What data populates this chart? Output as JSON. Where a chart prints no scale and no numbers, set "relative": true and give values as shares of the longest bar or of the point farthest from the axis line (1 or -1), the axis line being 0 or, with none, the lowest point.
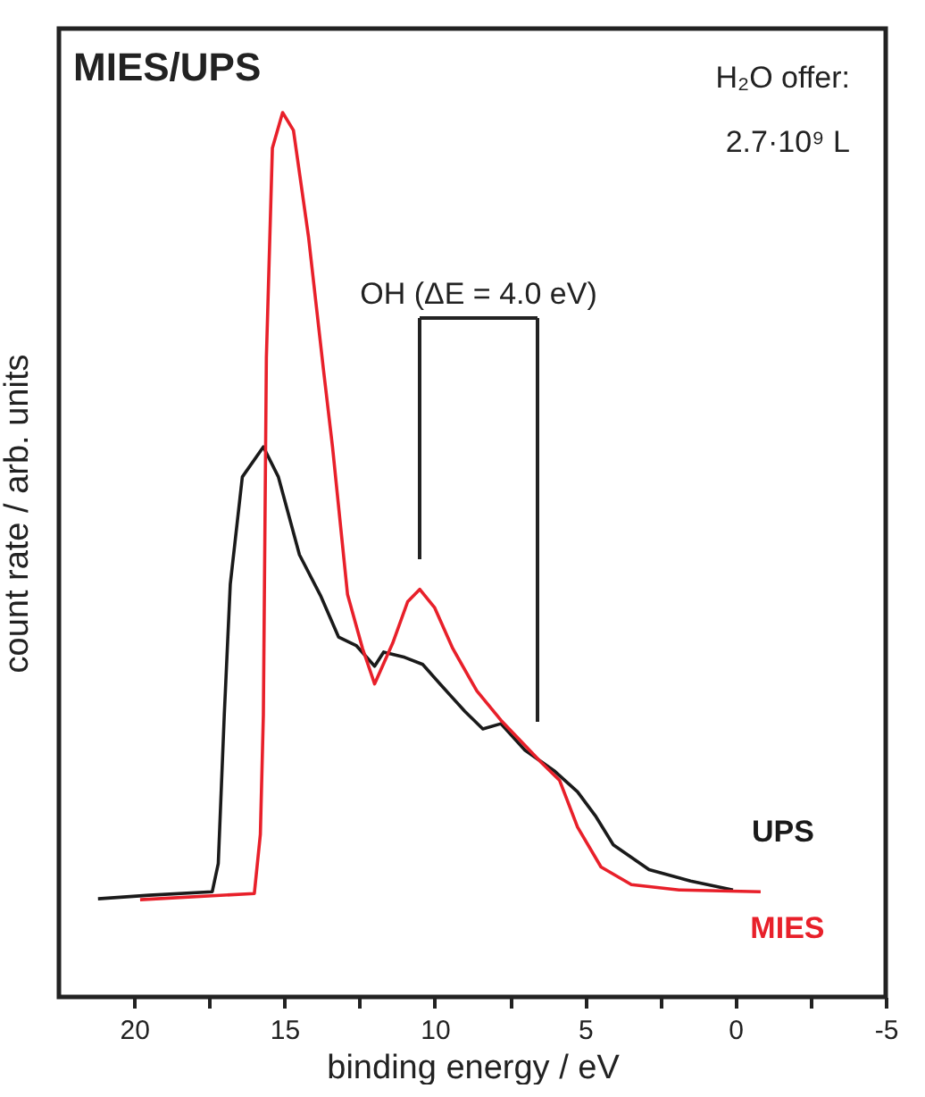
{
  "chart_data": {
    "type": "line",
    "title": "MIES/UPS",
    "xlabel": "binding energy / eV",
    "ylabel": "count rate / arb. units",
    "relative": true,
    "annotations": [
      "H₂O offer:",
      "2.7·10⁹ L",
      "OH (ΔE = 4.0 eV)"
    ],
    "xlim": [
      22.5,
      -5
    ],
    "xticks": [
      20,
      {
        "value": 17.5,
        "label": null
      },
      15,
      {
        "value": 12.5,
        "label": null
      },
      10,
      {
        "value": 7.5,
        "label": null
      },
      5,
      {
        "value": 2.5,
        "label": null
      },
      0,
      {
        "value": -2.5,
        "label": null
      },
      -5
    ],
    "grid": false,
    "legend": false,
    "line_style": "solid",
    "marker": "none",
    "series": [
      {
        "name": "UPS",
        "color": "#1a1a1a",
        "x": [
          21.2,
          19.5,
          17.4,
          17.2,
          17.0,
          16.8,
          16.4,
          15.7,
          15.2,
          14.5,
          13.8,
          13.2,
          12.6,
          12.0,
          11.7,
          11.0,
          10.4,
          9.8,
          9.0,
          8.4,
          7.8,
          7.0,
          6.0,
          5.25,
          4.66,
          4.06,
          2.87,
          1.49,
          0.08
        ],
        "values": [
          0.111,
          0.115,
          0.119,
          0.151,
          0.319,
          0.467,
          0.588,
          0.622,
          0.588,
          0.5,
          0.454,
          0.407,
          0.397,
          0.374,
          0.39,
          0.384,
          0.376,
          0.353,
          0.323,
          0.303,
          0.309,
          0.279,
          0.255,
          0.232,
          0.205,
          0.172,
          0.144,
          0.131,
          0.121
        ]
      },
      {
        "name": "MIES",
        "color": "#e8202a",
        "x": [
          19.8,
          16.0,
          15.8,
          15.7,
          15.6,
          15.4,
          15.06,
          14.7,
          14.2,
          13.7,
          13.4,
          12.9,
          12.4,
          12.0,
          11.4,
          10.9,
          10.5,
          10.0,
          9.4,
          8.6,
          7.8,
          6.45,
          5.85,
          5.25,
          4.47,
          3.46,
          1.87,
          -0.84
        ],
        "values": [
          0.11,
          0.117,
          0.184,
          0.319,
          0.723,
          0.96,
          1.0,
          0.98,
          0.86,
          0.709,
          0.622,
          0.455,
          0.394,
          0.354,
          0.4,
          0.447,
          0.461,
          0.44,
          0.394,
          0.346,
          0.313,
          0.265,
          0.245,
          0.192,
          0.147,
          0.127,
          0.121,
          0.119
        ]
      }
    ]
  }
}
